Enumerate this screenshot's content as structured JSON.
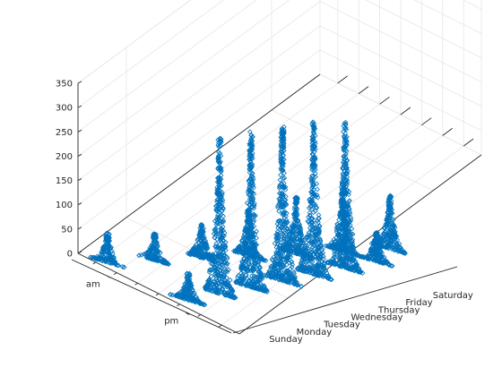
{
  "chart_data": {
    "type": "scatter",
    "subtype": "3d-scatter",
    "title": "",
    "xlabel": "",
    "ylabel": "",
    "zlabel": "",
    "x_categories": [
      "Sunday",
      "Monday",
      "Tuesday",
      "Wednesday",
      "Thursday",
      "Friday",
      "Saturday"
    ],
    "y_categories": [
      "am",
      "pm"
    ],
    "z_ticks": [
      0,
      50,
      100,
      150,
      200,
      250,
      300,
      350
    ],
    "zlim": [
      0,
      350
    ],
    "grid": true,
    "legend": "none",
    "marker": "open-diamond",
    "marker_color": "#0072BD",
    "series": [
      {
        "day": "Sunday",
        "period": "am",
        "peak": 60,
        "min": 0
      },
      {
        "day": "Monday",
        "period": "am",
        "peak": 55,
        "min": 0
      },
      {
        "day": "Tuesday",
        "period": "am",
        "peak": 70,
        "min": 0
      },
      {
        "day": "Wednesday",
        "period": "am",
        "peak": 95,
        "min": 0
      },
      {
        "day": "Thursday",
        "period": "am",
        "peak": 120,
        "min": 0
      },
      {
        "day": "Friday",
        "period": "am",
        "peak": 140,
        "min": 0
      },
      {
        "day": "Saturday",
        "period": "am",
        "peak": 110,
        "min": 0
      },
      {
        "day": "Sunday",
        "period": "pm",
        "peak": 55,
        "min": 0
      },
      {
        "day": "Monday",
        "period": "pm",
        "peak": 320,
        "min": 0
      },
      {
        "day": "Tuesday",
        "period": "pm",
        "peak": 320,
        "min": 0
      },
      {
        "day": "Wednesday",
        "period": "pm",
        "peak": 320,
        "min": 0
      },
      {
        "day": "Thursday",
        "period": "pm",
        "peak": 315,
        "min": 0
      },
      {
        "day": "Friday",
        "period": "pm",
        "peak": 300,
        "min": 0
      },
      {
        "day": "Saturday",
        "period": "pm",
        "peak": 60,
        "min": 0
      }
    ]
  }
}
